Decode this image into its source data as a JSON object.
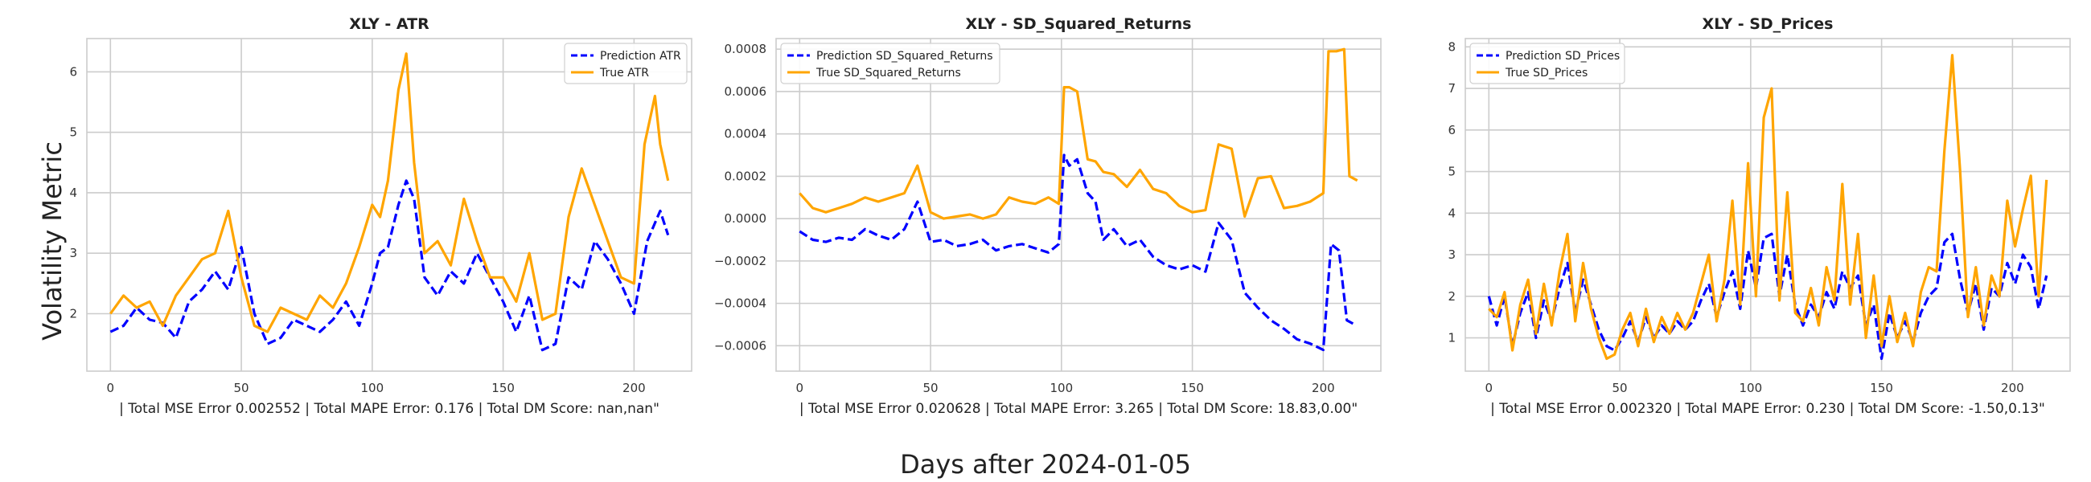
{
  "figure": {
    "ylabel": "Volatility Metric",
    "xlabel": "Days after 2024-01-05"
  },
  "colors": {
    "prediction": "#0000ff",
    "true": "#ffa500",
    "grid": "#cccccc",
    "frame": "#cccccc"
  },
  "chart_data": [
    {
      "type": "line",
      "title": "XLY - ATR",
      "footer": "| Total MSE Error 0.002552 | Total MAPE Error: 0.176 | Total DM Score: nan,nan\"",
      "legend_position": "top-right",
      "xlim": [
        -9,
        222
      ],
      "ylim": [
        1.05,
        6.55
      ],
      "xticks": [
        0,
        50,
        100,
        150,
        200
      ],
      "yticks": [
        2,
        3,
        4,
        5,
        6
      ],
      "ytick_labels": [
        "2",
        "3",
        "4",
        "5",
        "6"
      ],
      "series": [
        {
          "name": "Prediction ATR",
          "role": "prediction",
          "x": [
            0,
            5,
            10,
            15,
            20,
            25,
            30,
            35,
            40,
            45,
            50,
            55,
            60,
            65,
            70,
            75,
            80,
            85,
            90,
            95,
            100,
            103,
            106,
            110,
            113,
            116,
            120,
            125,
            130,
            135,
            140,
            145,
            150,
            155,
            160,
            165,
            170,
            175,
            180,
            185,
            190,
            195,
            200,
            205,
            210,
            213
          ],
          "y": [
            1.7,
            1.8,
            2.1,
            1.9,
            1.85,
            1.6,
            2.2,
            2.4,
            2.7,
            2.4,
            3.1,
            2.0,
            1.5,
            1.6,
            1.9,
            1.8,
            1.7,
            1.9,
            2.2,
            1.8,
            2.5,
            3.0,
            3.1,
            3.8,
            4.2,
            3.9,
            2.6,
            2.3,
            2.7,
            2.5,
            3.0,
            2.6,
            2.2,
            1.7,
            2.3,
            1.4,
            1.5,
            2.6,
            2.4,
            3.2,
            2.9,
            2.5,
            2.0,
            3.2,
            3.7,
            3.3
          ]
        },
        {
          "name": "True ATR",
          "role": "true",
          "x": [
            0,
            5,
            10,
            15,
            20,
            25,
            30,
            35,
            40,
            45,
            50,
            55,
            60,
            65,
            70,
            75,
            80,
            85,
            90,
            95,
            100,
            103,
            106,
            110,
            113,
            116,
            120,
            125,
            130,
            135,
            140,
            145,
            150,
            155,
            160,
            165,
            170,
            175,
            180,
            185,
            190,
            195,
            200,
            204,
            208,
            210,
            213
          ],
          "y": [
            2.0,
            2.3,
            2.1,
            2.2,
            1.8,
            2.3,
            2.6,
            2.9,
            3.0,
            3.7,
            2.6,
            1.8,
            1.7,
            2.1,
            2.0,
            1.9,
            2.3,
            2.1,
            2.5,
            3.1,
            3.8,
            3.6,
            4.2,
            5.7,
            6.3,
            4.5,
            3.0,
            3.2,
            2.8,
            3.9,
            3.2,
            2.6,
            2.6,
            2.2,
            3.0,
            1.9,
            2.0,
            3.6,
            4.4,
            3.8,
            3.2,
            2.6,
            2.5,
            4.8,
            5.6,
            4.8,
            4.2
          ]
        }
      ]
    },
    {
      "type": "line",
      "title": "XLY - SD_Squared_Returns",
      "footer": "| Total MSE Error 0.020628 | Total MAPE Error: 3.265 | Total DM Score: 18.83,0.00\"",
      "legend_position": "top-left",
      "xlim": [
        -9,
        222
      ],
      "ylim": [
        -0.00072,
        0.00085
      ],
      "xticks": [
        0,
        50,
        100,
        150,
        200
      ],
      "yticks": [
        -0.0006,
        -0.0004,
        -0.0002,
        0.0,
        0.0002,
        0.0004,
        0.0006,
        0.0008
      ],
      "ytick_labels": [
        "−0.0006",
        "−0.0004",
        "−0.0002",
        "0.0000",
        "0.0002",
        "0.0004",
        "0.0006",
        "0.0008"
      ],
      "series": [
        {
          "name": "Prediction SD_Squared_Returns",
          "role": "prediction",
          "x": [
            0,
            5,
            10,
            15,
            20,
            25,
            30,
            35,
            40,
            45,
            50,
            55,
            60,
            65,
            70,
            75,
            80,
            85,
            90,
            95,
            99,
            101,
            103,
            106,
            110,
            113,
            116,
            120,
            125,
            130,
            135,
            140,
            145,
            150,
            155,
            160,
            165,
            170,
            175,
            180,
            185,
            190,
            195,
            200,
            203,
            206,
            209,
            212
          ],
          "y": [
            -6e-05,
            -0.0001,
            -0.00011,
            -9e-05,
            -0.0001,
            -5e-05,
            -8e-05,
            -0.0001,
            -5e-05,
            8e-05,
            -0.00011,
            -0.0001,
            -0.00013,
            -0.00012,
            -0.0001,
            -0.00015,
            -0.00013,
            -0.00012,
            -0.00014,
            -0.00016,
            -0.00012,
            0.0003,
            0.00025,
            0.00028,
            0.00012,
            8e-05,
            -0.0001,
            -5e-05,
            -0.00013,
            -0.0001,
            -0.00018,
            -0.00022,
            -0.00024,
            -0.00022,
            -0.00025,
            -2e-05,
            -0.0001,
            -0.00035,
            -0.00042,
            -0.00048,
            -0.00052,
            -0.00057,
            -0.00059,
            -0.00062,
            -0.00012,
            -0.00015,
            -0.00048,
            -0.0005
          ]
        },
        {
          "name": "True SD_Squared_Returns",
          "role": "true",
          "x": [
            0,
            5,
            10,
            15,
            20,
            25,
            30,
            35,
            40,
            45,
            50,
            55,
            60,
            65,
            70,
            75,
            80,
            85,
            90,
            95,
            99,
            101,
            103,
            106,
            110,
            113,
            116,
            120,
            125,
            130,
            135,
            140,
            145,
            150,
            155,
            160,
            165,
            170,
            175,
            180,
            185,
            190,
            195,
            200,
            202,
            205,
            208,
            210,
            213
          ],
          "y": [
            0.00012,
            5e-05,
            3e-05,
            5e-05,
            7e-05,
            0.0001,
            8e-05,
            0.0001,
            0.00012,
            0.00025,
            3e-05,
            0.0,
            1e-05,
            2e-05,
            0.0,
            2e-05,
            0.0001,
            8e-05,
            7e-05,
            0.0001,
            7e-05,
            0.00062,
            0.00062,
            0.0006,
            0.00028,
            0.00027,
            0.00022,
            0.00021,
            0.00015,
            0.00023,
            0.00014,
            0.00012,
            6e-05,
            3e-05,
            4e-05,
            0.00035,
            0.00033,
            1e-05,
            0.00019,
            0.0002,
            5e-05,
            6e-05,
            8e-05,
            0.00012,
            0.00079,
            0.00079,
            0.0008,
            0.0002,
            0.00018
          ]
        }
      ]
    },
    {
      "type": "line",
      "title": "XLY - SD_Prices",
      "footer": "| Total MSE Error 0.002320 | Total MAPE Error: 0.230 | Total DM Score: -1.50,0.13\"",
      "legend_position": "top-left",
      "xlim": [
        -9,
        222
      ],
      "ylim": [
        0.2,
        8.2
      ],
      "xticks": [
        0,
        50,
        100,
        150,
        200
      ],
      "yticks": [
        1,
        2,
        3,
        4,
        5,
        6,
        7,
        8
      ],
      "ytick_labels": [
        "1",
        "2",
        "3",
        "4",
        "5",
        "6",
        "7",
        "8"
      ],
      "series": [
        {
          "name": "Prediction SD_Prices",
          "role": "prediction",
          "x": [
            0,
            3,
            6,
            9,
            12,
            15,
            18,
            21,
            24,
            27,
            30,
            33,
            36,
            39,
            42,
            45,
            48,
            51,
            54,
            57,
            60,
            63,
            66,
            69,
            72,
            75,
            78,
            81,
            84,
            87,
            90,
            93,
            96,
            99,
            102,
            105,
            108,
            111,
            114,
            117,
            120,
            123,
            126,
            129,
            132,
            135,
            138,
            141,
            144,
            147,
            150,
            153,
            156,
            159,
            162,
            165,
            168,
            171,
            174,
            177,
            180,
            183,
            186,
            189,
            192,
            195,
            198,
            201,
            204,
            207,
            210,
            213
          ],
          "y": [
            2.0,
            1.3,
            2.0,
            0.8,
            1.6,
            2.1,
            1.0,
            1.9,
            1.4,
            2.2,
            2.8,
            1.6,
            2.4,
            1.8,
            1.2,
            0.8,
            0.7,
            1.0,
            1.4,
            0.9,
            1.5,
            1.0,
            1.3,
            1.1,
            1.4,
            1.2,
            1.4,
            1.9,
            2.3,
            1.5,
            2.1,
            2.6,
            1.7,
            3.1,
            2.2,
            3.4,
            3.5,
            2.0,
            3.0,
            1.8,
            1.3,
            1.8,
            1.5,
            2.1,
            1.7,
            2.6,
            2.2,
            2.5,
            1.3,
            1.8,
            0.5,
            1.6,
            1.0,
            1.4,
            0.9,
            1.6,
            2.0,
            2.2,
            3.3,
            3.5,
            2.4,
            1.6,
            2.3,
            1.2,
            2.2,
            2.0,
            2.8,
            2.3,
            3.0,
            2.7,
            1.7,
            2.5
          ]
        },
        {
          "name": "True SD_Prices",
          "role": "true",
          "x": [
            0,
            3,
            6,
            9,
            12,
            15,
            18,
            21,
            24,
            27,
            30,
            33,
            36,
            39,
            42,
            45,
            48,
            51,
            54,
            57,
            60,
            63,
            66,
            69,
            72,
            75,
            78,
            81,
            84,
            87,
            90,
            93,
            96,
            99,
            102,
            105,
            108,
            111,
            114,
            117,
            120,
            123,
            126,
            129,
            132,
            135,
            138,
            141,
            144,
            147,
            150,
            153,
            156,
            159,
            162,
            165,
            168,
            171,
            174,
            177,
            180,
            183,
            186,
            189,
            192,
            195,
            198,
            201,
            204,
            207,
            210,
            213
          ],
          "y": [
            1.7,
            1.5,
            2.1,
            0.7,
            1.8,
            2.4,
            1.1,
            2.3,
            1.3,
            2.6,
            3.5,
            1.4,
            2.8,
            1.7,
            1.0,
            0.5,
            0.6,
            1.2,
            1.6,
            0.8,
            1.7,
            0.9,
            1.5,
            1.1,
            1.6,
            1.2,
            1.6,
            2.3,
            3.0,
            1.4,
            2.4,
            4.3,
            1.8,
            5.2,
            2.0,
            6.3,
            7.0,
            1.9,
            4.5,
            1.6,
            1.4,
            2.2,
            1.3,
            2.7,
            1.9,
            4.7,
            1.8,
            3.5,
            1.0,
            2.5,
            0.8,
            2.0,
            0.9,
            1.6,
            0.8,
            2.1,
            2.7,
            2.6,
            5.5,
            7.8,
            5.0,
            1.5,
            2.7,
            1.3,
            2.5,
            2.0,
            4.3,
            3.2,
            4.1,
            4.9,
            2.0,
            4.8
          ]
        }
      ]
    }
  ]
}
